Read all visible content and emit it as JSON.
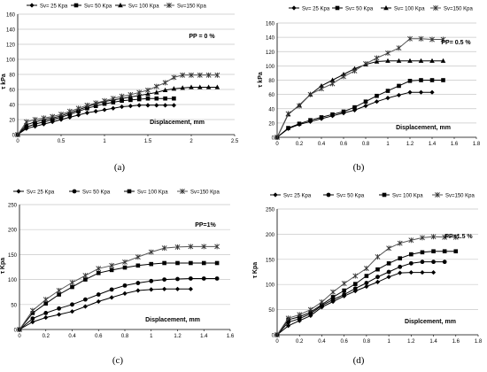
{
  "chart_data": [
    {
      "type": "line",
      "caption": "(a)",
      "ylabel": "τ kPa",
      "xlabel": "Displacement, mm",
      "annotation": "PP = 0 %",
      "xlim": [
        0,
        2.5
      ],
      "ylim": [
        0,
        160
      ],
      "xticks": [
        "0",
        "0.5",
        "1",
        "1.5",
        "2",
        "2.5"
      ],
      "yticks": [
        "0",
        "20",
        "40",
        "60",
        "80",
        "100",
        "120",
        "140",
        "160"
      ],
      "legend_position": "top",
      "series": [
        {
          "name": "Sv= 25 Kpa",
          "marker": "diamond",
          "x": [
            0,
            0.1,
            0.2,
            0.3,
            0.4,
            0.5,
            0.6,
            0.7,
            0.8,
            0.9,
            1.0,
            1.1,
            1.2,
            1.3,
            1.4,
            1.5,
            1.6,
            1.7,
            1.8
          ],
          "y": [
            0,
            8,
            11,
            14,
            17,
            20,
            23,
            26,
            29,
            31,
            33,
            35,
            37,
            38,
            39,
            39,
            39,
            39,
            39
          ]
        },
        {
          "name": "Sv= 50 Kpa",
          "marker": "square",
          "x": [
            0,
            0.1,
            0.2,
            0.3,
            0.4,
            0.5,
            0.6,
            0.7,
            0.8,
            0.9,
            1.0,
            1.1,
            1.2,
            1.3,
            1.4,
            1.5,
            1.6,
            1.7,
            1.8
          ],
          "y": [
            0,
            10,
            14,
            17,
            20,
            23,
            27,
            31,
            35,
            38,
            41,
            43,
            45,
            46,
            47,
            48,
            48,
            48,
            48
          ]
        },
        {
          "name": "Sv= 100 Kpa",
          "marker": "triangle",
          "x": [
            0,
            0.1,
            0.2,
            0.3,
            0.4,
            0.5,
            0.6,
            0.7,
            0.8,
            0.9,
            1.0,
            1.1,
            1.2,
            1.3,
            1.4,
            1.5,
            1.6,
            1.7,
            1.8,
            1.9,
            2.0,
            2.1,
            2.2,
            2.3
          ],
          "y": [
            0,
            13,
            17,
            20,
            22,
            25,
            29,
            33,
            37,
            41,
            44,
            46,
            48,
            50,
            52,
            54,
            56,
            59,
            61,
            62,
            63,
            63,
            63,
            63
          ]
        },
        {
          "name": "Sv=150 Kpa",
          "marker": "star",
          "x": [
            0,
            0.1,
            0.2,
            0.3,
            0.4,
            0.5,
            0.6,
            0.7,
            0.8,
            0.9,
            1.0,
            1.1,
            1.2,
            1.3,
            1.4,
            1.5,
            1.6,
            1.7,
            1.8,
            1.9,
            2.0,
            2.1,
            2.2,
            2.3
          ],
          "y": [
            0,
            17,
            20,
            22,
            24,
            27,
            31,
            35,
            39,
            42,
            45,
            48,
            51,
            53,
            56,
            59,
            64,
            69,
            76,
            79,
            79,
            79,
            79,
            79
          ]
        }
      ]
    },
    {
      "type": "line",
      "caption": "(b)",
      "ylabel": "τ kPa",
      "xlabel": "Displacement, mm",
      "annotation": "PP= 0.5 %",
      "xlim": [
        0,
        1.8
      ],
      "ylim": [
        0,
        160
      ],
      "xticks": [
        "0",
        "0.2",
        "0.4",
        "0.6",
        "0.8",
        "1",
        "1.2",
        "1.4",
        "1.6",
        "1.8"
      ],
      "yticks": [
        "0",
        "20",
        "40",
        "60",
        "80",
        "100",
        "120",
        "140",
        "160"
      ],
      "legend_position": "top",
      "series": [
        {
          "name": "Sv= 25 Kpa",
          "marker": "diamond",
          "x": [
            0,
            0.1,
            0.2,
            0.3,
            0.4,
            0.5,
            0.6,
            0.7,
            0.8,
            0.9,
            1.0,
            1.1,
            1.2,
            1.3,
            1.4
          ],
          "y": [
            0,
            12,
            18,
            22,
            26,
            30,
            34,
            38,
            44,
            50,
            55,
            59,
            63,
            63,
            63
          ]
        },
        {
          "name": "Sv= 50 Kpa",
          "marker": "square",
          "x": [
            0,
            0.1,
            0.2,
            0.3,
            0.4,
            0.5,
            0.6,
            0.7,
            0.8,
            0.9,
            1.0,
            1.1,
            1.2,
            1.3,
            1.4,
            1.5
          ],
          "y": [
            0,
            13,
            19,
            24,
            28,
            32,
            36,
            42,
            50,
            58,
            65,
            72,
            79,
            80,
            80,
            80
          ]
        },
        {
          "name": "Sv= 100 Kpa",
          "marker": "triangle",
          "x": [
            0,
            0.1,
            0.2,
            0.3,
            0.4,
            0.5,
            0.6,
            0.7,
            0.8,
            0.9,
            1.0,
            1.1,
            1.2,
            1.3,
            1.4,
            1.5
          ],
          "y": [
            0,
            32,
            45,
            60,
            72,
            80,
            88,
            96,
            102,
            106,
            107,
            107,
            107,
            107,
            107,
            107
          ]
        },
        {
          "name": "Sv=150 Kpa",
          "marker": "star",
          "x": [
            0,
            0.1,
            0.2,
            0.3,
            0.4,
            0.5,
            0.6,
            0.7,
            0.8,
            0.9,
            1.0,
            1.1,
            1.2,
            1.3,
            1.4,
            1.5
          ],
          "y": [
            0,
            33,
            44,
            60,
            68,
            75,
            85,
            93,
            103,
            111,
            118,
            125,
            138,
            138,
            137,
            137
          ]
        }
      ]
    },
    {
      "type": "line",
      "caption": "(c)",
      "ylabel": "τ Kpa",
      "xlabel": "Displacement, mm",
      "annotation": "PP=1%",
      "xlim": [
        0,
        1.6
      ],
      "ylim": [
        0,
        250
      ],
      "xticks": [
        "0",
        "0.2",
        "0.4",
        "0.6",
        "0.8",
        "1",
        "1.2",
        "1.4",
        "1.6"
      ],
      "yticks": [
        "0",
        "50",
        "100",
        "150",
        "200",
        "250"
      ],
      "legend_position": "top",
      "series": [
        {
          "name": "Sv= 25 Kpa",
          "marker": "diamond",
          "x": [
            0,
            0.1,
            0.2,
            0.3,
            0.4,
            0.5,
            0.6,
            0.7,
            0.8,
            0.9,
            1.0,
            1.1,
            1.2,
            1.3
          ],
          "y": [
            0,
            15,
            24,
            30,
            36,
            46,
            56,
            64,
            72,
            78,
            80,
            81,
            81,
            81
          ]
        },
        {
          "name": "Sv= 50 Kpa",
          "marker": "circle",
          "x": [
            0,
            0.1,
            0.2,
            0.3,
            0.4,
            0.5,
            0.6,
            0.7,
            0.8,
            0.9,
            1.0,
            1.1,
            1.2,
            1.3,
            1.4,
            1.5
          ],
          "y": [
            0,
            22,
            33,
            42,
            50,
            60,
            70,
            80,
            88,
            93,
            97,
            100,
            101,
            102,
            102,
            102
          ]
        },
        {
          "name": "Sv= 100 Kpa",
          "marker": "square",
          "x": [
            0,
            0.1,
            0.2,
            0.3,
            0.4,
            0.5,
            0.6,
            0.7,
            0.8,
            0.9,
            1.0,
            1.1,
            1.2,
            1.3,
            1.4,
            1.5
          ],
          "y": [
            0,
            33,
            52,
            70,
            85,
            100,
            113,
            119,
            124,
            128,
            131,
            133,
            133,
            133,
            133,
            133
          ]
        },
        {
          "name": "Sv=150 Kpa",
          "marker": "star",
          "x": [
            0,
            0.1,
            0.2,
            0.3,
            0.4,
            0.5,
            0.6,
            0.7,
            0.8,
            0.9,
            1.0,
            1.1,
            1.2,
            1.3,
            1.4,
            1.5
          ],
          "y": [
            0,
            38,
            60,
            78,
            94,
            108,
            122,
            128,
            135,
            145,
            155,
            163,
            165,
            166,
            166,
            166
          ]
        }
      ]
    },
    {
      "type": "line",
      "caption": "(d)",
      "ylabel": "τ Kpa",
      "xlabel": "Displcement, mm",
      "annotation": "PP=1.5 %",
      "xlim": [
        0,
        1.8
      ],
      "ylim": [
        0,
        250
      ],
      "xticks": [
        "0",
        "0.2",
        "0.4",
        "0.6",
        "0.8",
        "1",
        "1.2",
        "1.4",
        "1.6",
        "1.8"
      ],
      "yticks": [
        "0",
        "50",
        "100",
        "150",
        "200",
        "250"
      ],
      "legend_position": "top",
      "series": [
        {
          "name": "Sv= 25 Kpa",
          "marker": "diamond",
          "x": [
            0,
            0.1,
            0.2,
            0.3,
            0.4,
            0.5,
            0.6,
            0.7,
            0.8,
            0.9,
            1.0,
            1.1,
            1.2,
            1.3,
            1.4
          ],
          "y": [
            0,
            18,
            28,
            38,
            55,
            66,
            77,
            87,
            96,
            105,
            115,
            123,
            124,
            124,
            124
          ]
        },
        {
          "name": "Sv= 50 Kpa",
          "marker": "circle",
          "x": [
            0,
            0.1,
            0.2,
            0.3,
            0.4,
            0.5,
            0.6,
            0.7,
            0.8,
            0.9,
            1.0,
            1.1,
            1.2,
            1.3,
            1.4,
            1.5
          ],
          "y": [
            0,
            25,
            32,
            42,
            58,
            70,
            80,
            92,
            103,
            115,
            125,
            135,
            142,
            145,
            145,
            145
          ]
        },
        {
          "name": "Sv= 100 Kpa",
          "marker": "square",
          "x": [
            0,
            0.1,
            0.2,
            0.3,
            0.4,
            0.5,
            0.6,
            0.7,
            0.8,
            0.9,
            1.0,
            1.1,
            1.2,
            1.3,
            1.4,
            1.5,
            1.6
          ],
          "y": [
            0,
            30,
            36,
            45,
            60,
            75,
            88,
            101,
            117,
            130,
            142,
            152,
            160,
            164,
            166,
            166,
            166
          ]
        },
        {
          "name": "Sv=150 Kpa",
          "marker": "star",
          "x": [
            0,
            0.1,
            0.2,
            0.3,
            0.4,
            0.5,
            0.6,
            0.7,
            0.8,
            0.9,
            1.0,
            1.1,
            1.2,
            1.3,
            1.4,
            1.5,
            1.6
          ],
          "y": [
            0,
            33,
            40,
            50,
            65,
            85,
            102,
            117,
            132,
            155,
            172,
            182,
            188,
            193,
            195,
            194,
            194
          ]
        }
      ]
    }
  ]
}
